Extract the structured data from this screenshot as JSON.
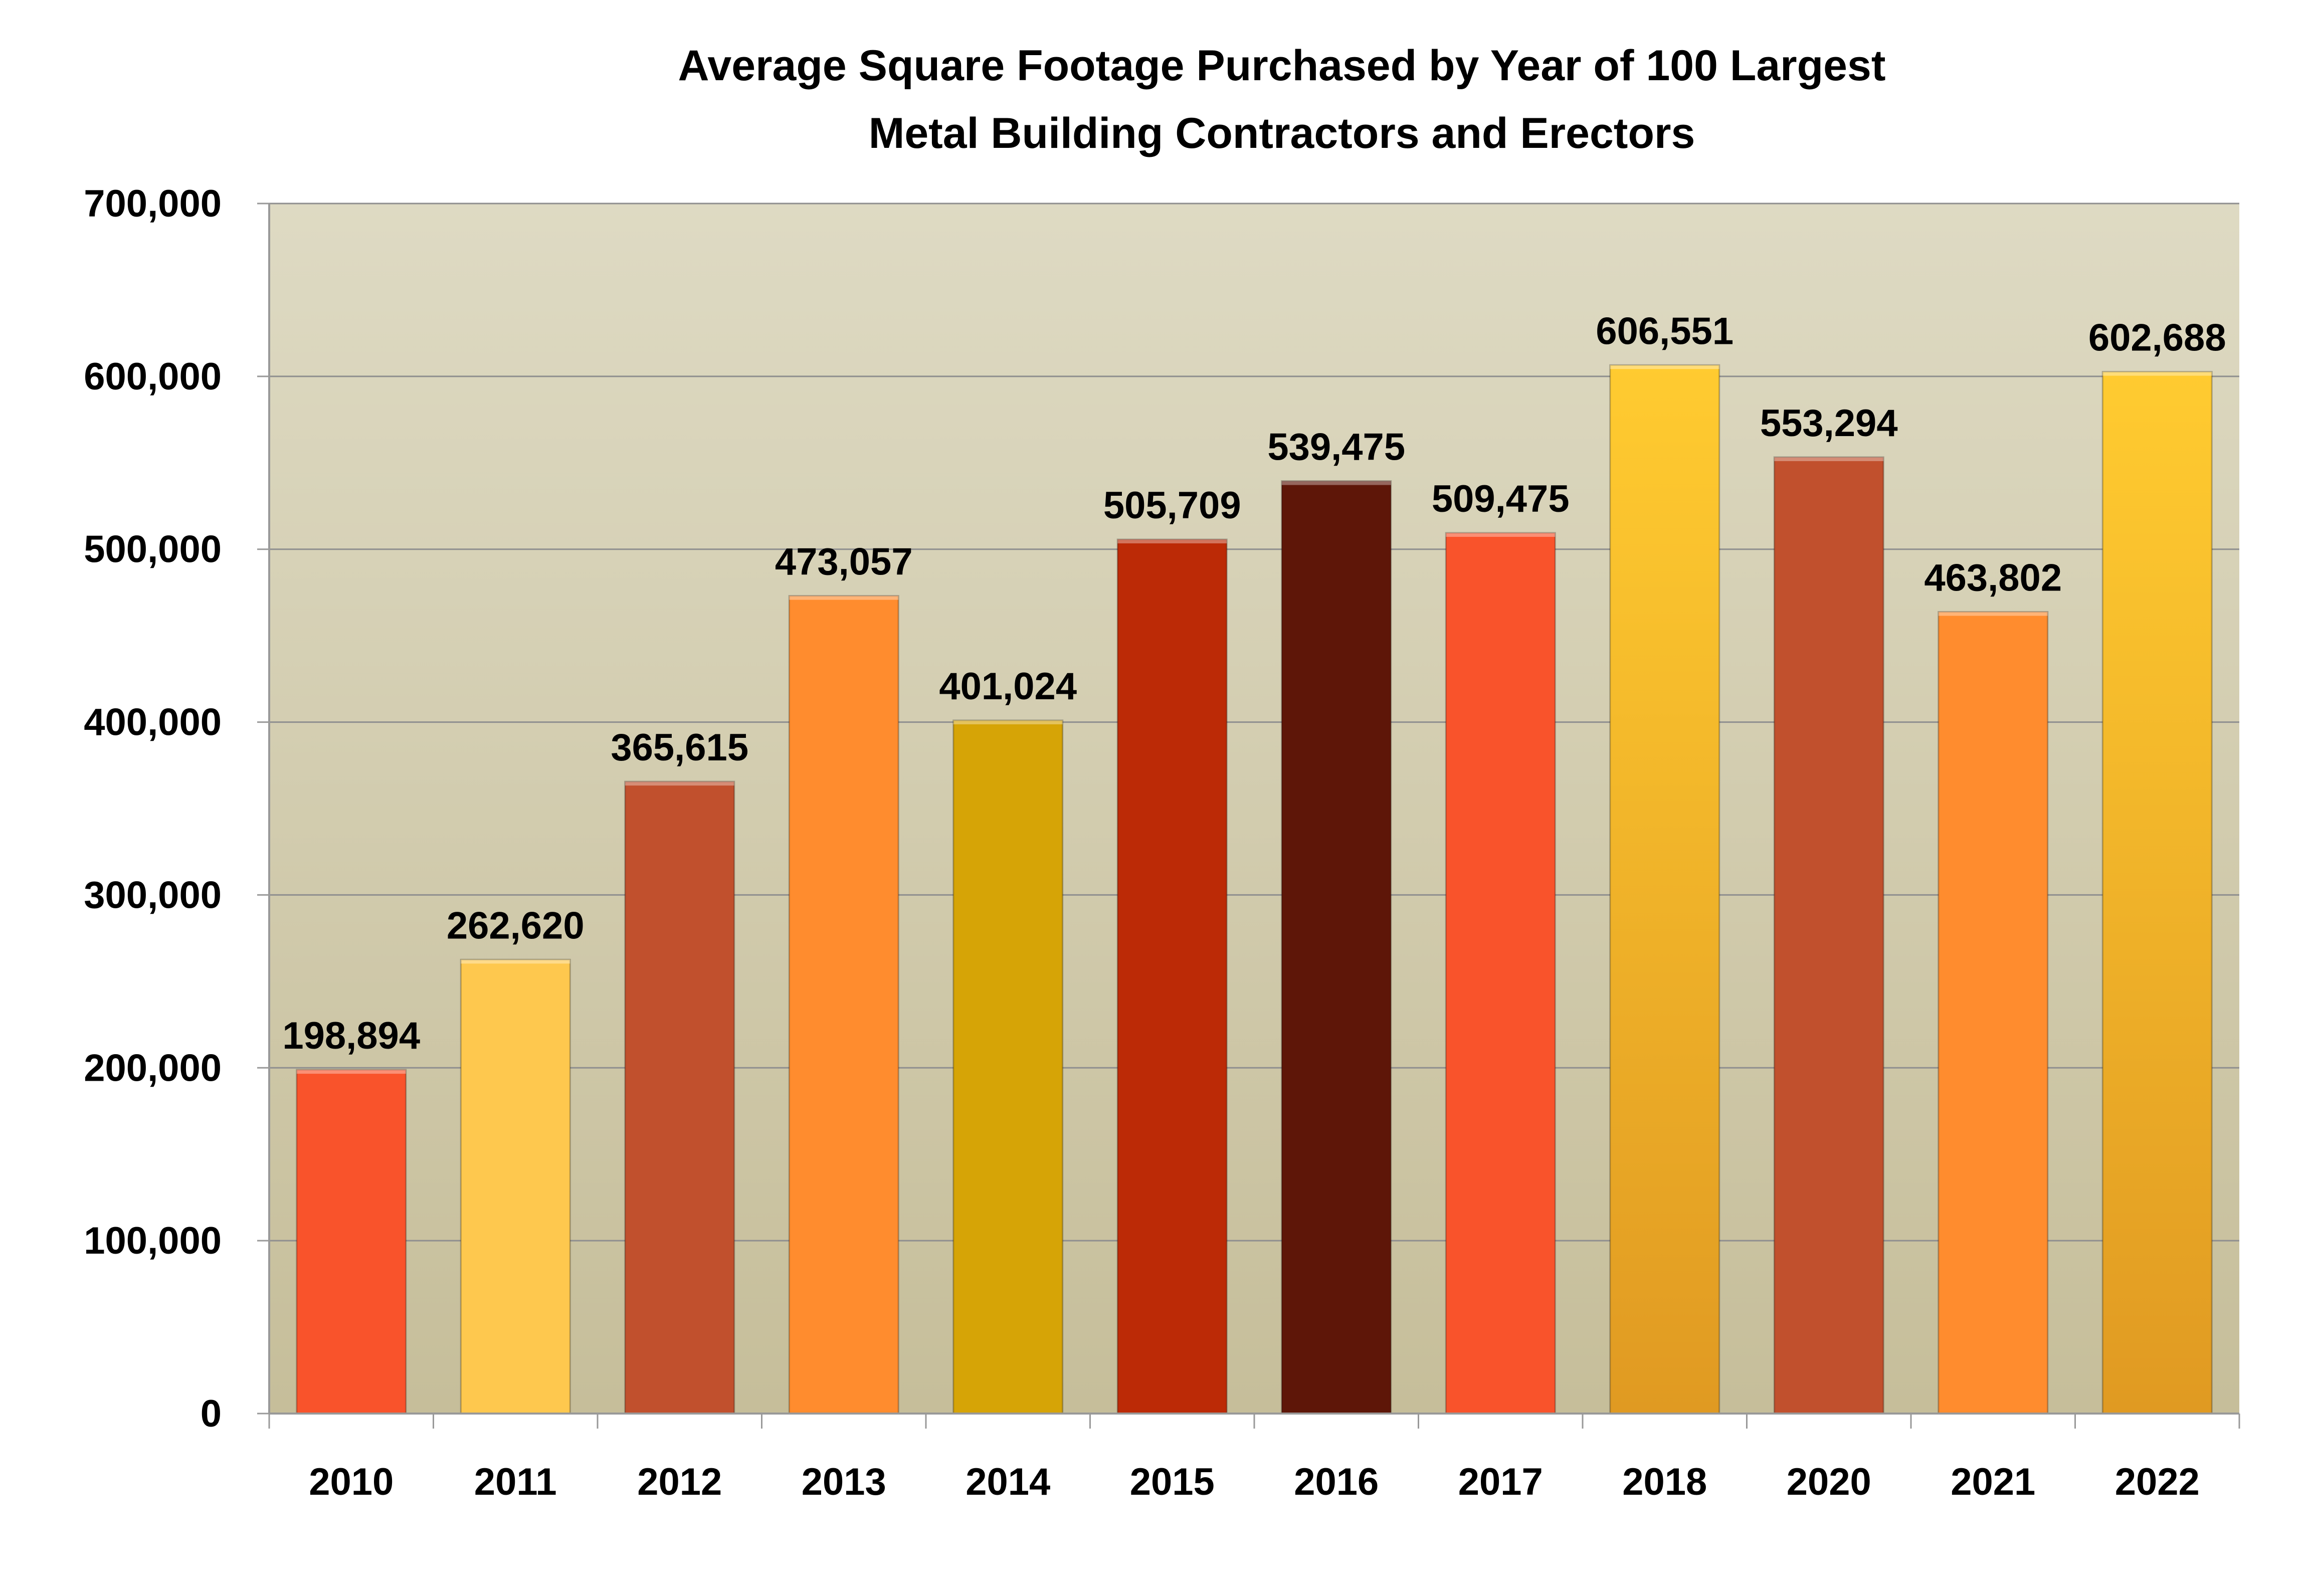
{
  "chart_data": {
    "type": "bar",
    "title_lines": [
      "Average Square Footage Purchased by Year of 100 Largest",
      "Metal Building Contractors and Erectors"
    ],
    "xlabel": "",
    "ylabel": "",
    "categories": [
      "2010",
      "2011",
      "2012",
      "2013",
      "2014",
      "2015",
      "2016",
      "2017",
      "2018",
      "2020",
      "2021",
      "2022"
    ],
    "values": [
      198894,
      262620,
      365615,
      473057,
      401024,
      505709,
      539475,
      509475,
      606551,
      553294,
      463802,
      602688
    ],
    "value_labels": [
      "198,894",
      "262,620",
      "365,615",
      "473,057",
      "401,024",
      "505,709",
      "539,475",
      "509,475",
      "606,551",
      "553,294",
      "463,802",
      "602,688"
    ],
    "ylim": [
      0,
      700000
    ],
    "yticks": [
      0,
      100000,
      200000,
      300000,
      400000,
      500000,
      600000,
      700000
    ],
    "ytick_labels": [
      "0",
      "100,000",
      "200,000",
      "300,000",
      "400,000",
      "500,000",
      "600,000",
      "700,000"
    ],
    "grid": true,
    "legend": "none",
    "bar_colors": [
      "#F9532B",
      "#FEC84E",
      "#C1502D",
      "#FF8C2E",
      "#D6A406",
      "#BC2A06",
      "#5E1608",
      "#F9532B",
      "#FFC72E",
      "#C1502D",
      "#FF8C2E",
      "#FFC72E"
    ],
    "plot_background": [
      "#DEDAC3",
      "#C6BE9A"
    ]
  }
}
